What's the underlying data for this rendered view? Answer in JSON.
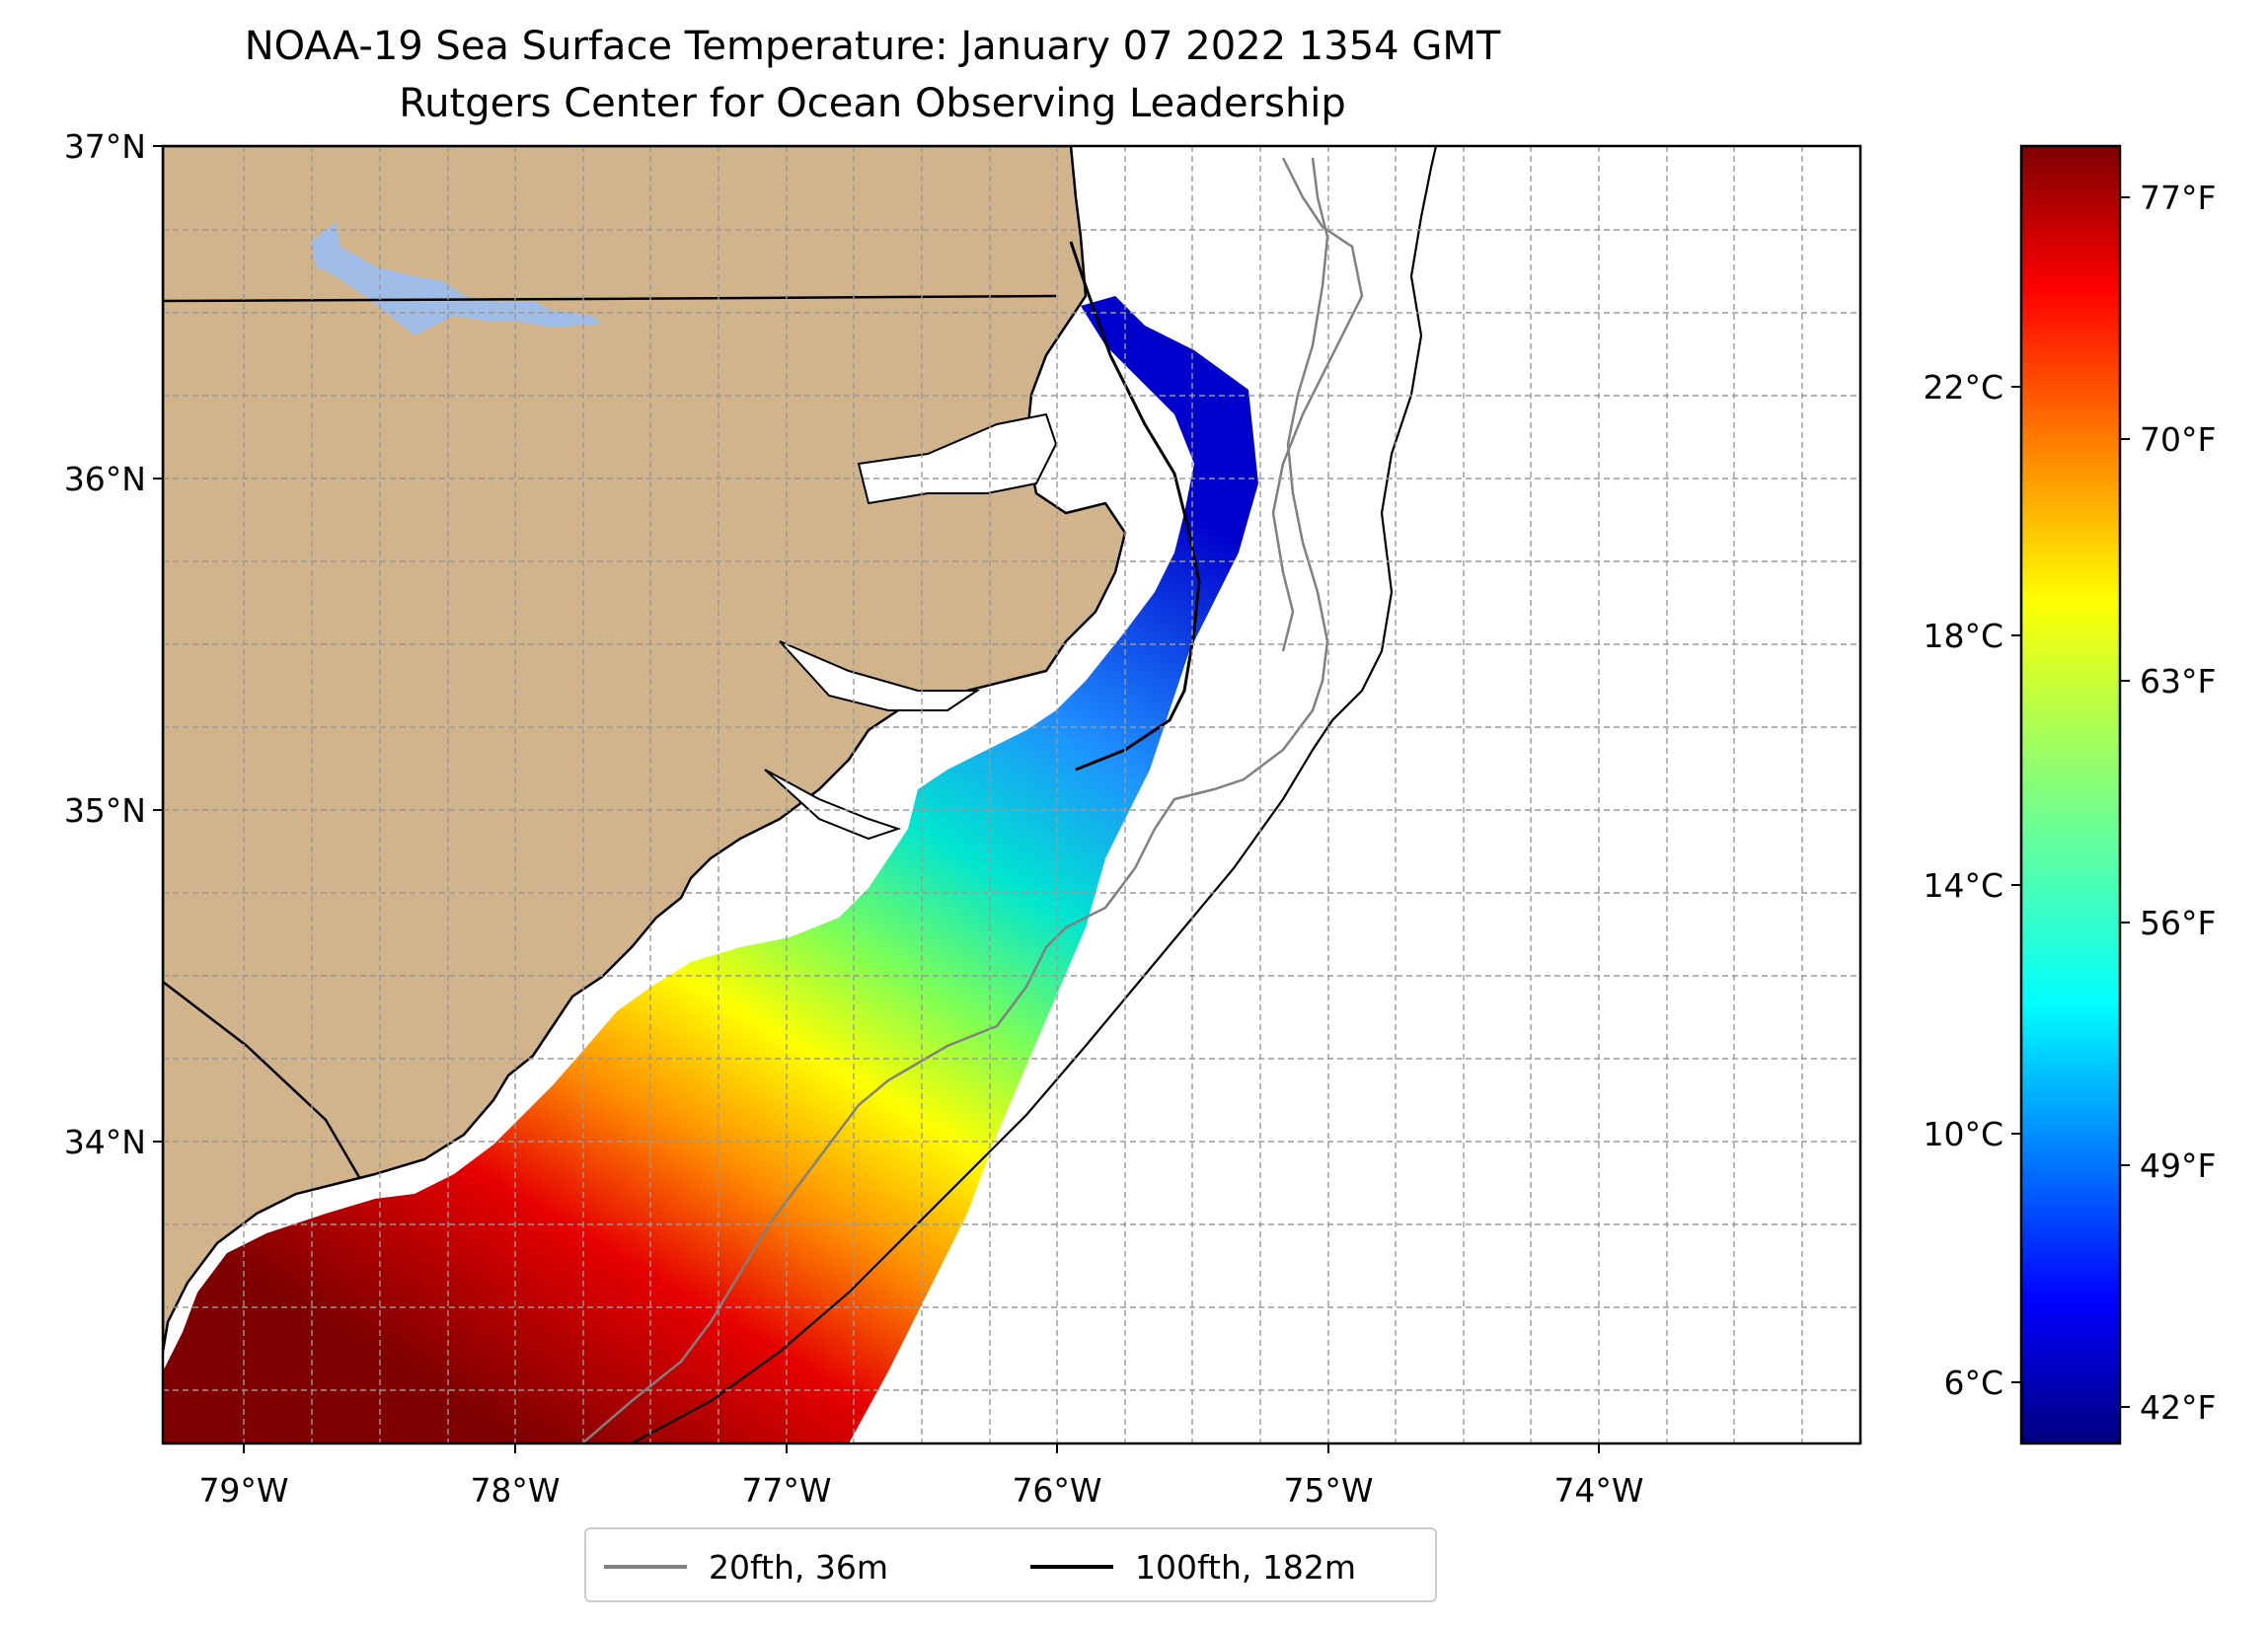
{
  "title": {
    "line1": "NOAA-19 Sea Surface Temperature: January 07 2022 1354 GMT",
    "line2": "Rutgers Center for Ocean Observing Leadership"
  },
  "map": {
    "lat_labels": [
      "37°N",
      "36°N",
      "35°N",
      "34°N"
    ],
    "lon_labels": [
      "79°W",
      "78°W",
      "77°W",
      "76°W",
      "75°W",
      "74°W"
    ],
    "land_color": "#d2b48c",
    "lake_color": "#9fbde6",
    "no_data_color": "#ffffff"
  },
  "colorbar": {
    "celsius_labels": [
      "22°C",
      "18°C",
      "14°C",
      "10°C",
      "6°C"
    ],
    "fahrenheit_labels": [
      "77°F",
      "70°F",
      "63°F",
      "56°F",
      "49°F",
      "42°F"
    ],
    "colormap": "jet"
  },
  "legend": {
    "items": [
      {
        "label": "20fth, 36m",
        "color": "#808080"
      },
      {
        "label": "100fth, 182m",
        "color": "#000000"
      }
    ]
  }
}
